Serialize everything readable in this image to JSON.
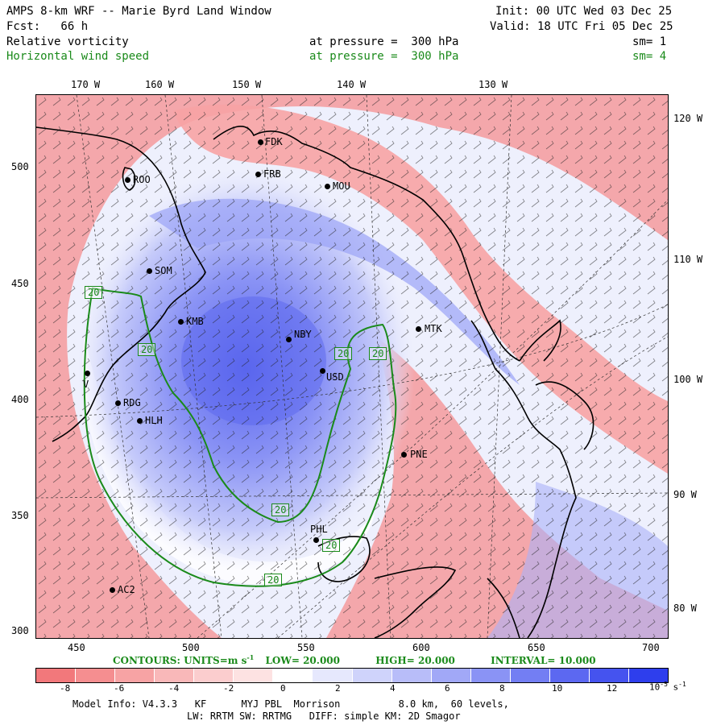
{
  "header": {
    "title": "AMPS 8-km WRF -- Marie Byrd Land Window",
    "init": "Init: 00 UTC Wed 03 Dec 25",
    "fcst": "Fcst:   66 h",
    "valid": "Valid: 18 UTC Fri 05 Dec 25",
    "field1": "Relative vorticity",
    "field1_level": "at pressure =  300 hPa",
    "field1_sm": "sm= 1",
    "field2": "Horizontal wind speed",
    "field2_level": "at pressure =  300 hPa",
    "field2_sm": "sm= 4"
  },
  "axes": {
    "top_lon": [
      "170 W",
      "160 W",
      "150 W",
      "140 W",
      "130 W"
    ],
    "right_lon": [
      "120 W",
      "110 W",
      "100 W",
      "90 W",
      "80 W"
    ],
    "left_y": [
      "500",
      "450",
      "400",
      "350",
      "300"
    ],
    "bottom_x": [
      "450",
      "500",
      "550",
      "600",
      "650",
      "700"
    ]
  },
  "stations": [
    "FDK",
    "FRB",
    "MOU",
    "ROO",
    "SOM",
    "KMB",
    "NBY",
    "MTK",
    "USD",
    "V",
    "RDG",
    "HLH",
    "PNE",
    "PHL",
    "AC2"
  ],
  "contour_labels": [
    "20",
    "20",
    "20",
    "20",
    "20",
    "20",
    "20"
  ],
  "contours": {
    "line": "CONTOURS:  UNITS=m s",
    "units_exp": "-1",
    "low": "LOW=  20.000",
    "high": "HIGH=  20.000",
    "interval": "INTERVAL=   10.000"
  },
  "colorbar": {
    "labels": [
      "-8",
      "-6",
      "-4",
      "-2",
      "0",
      "2",
      "4",
      "6",
      "8",
      "10",
      "12"
    ],
    "units_base": "10",
    "units_exp": "-5",
    "units_tail": "s",
    "units_tail_exp": "-1",
    "colors": [
      "#f2787b",
      "#f58e90",
      "#f7a3a4",
      "#f9b8b9",
      "#fbcdce",
      "#fde2e2",
      "#ffffff",
      "#e6e8fd",
      "#cfd3fb",
      "#b8bdf9",
      "#a1a8f7",
      "#8a93f5",
      "#737ef3",
      "#5c68f1",
      "#4553ef",
      "#2e3eed"
    ]
  },
  "footer": {
    "line1": "Model Info: V4.3.3   KF      MYJ PBL  Morrison          8.0 km,  60 levels,",
    "line2": "LW: RRTM SW: RRTMG   DIFF: simple KM: 2D Smagor"
  }
}
